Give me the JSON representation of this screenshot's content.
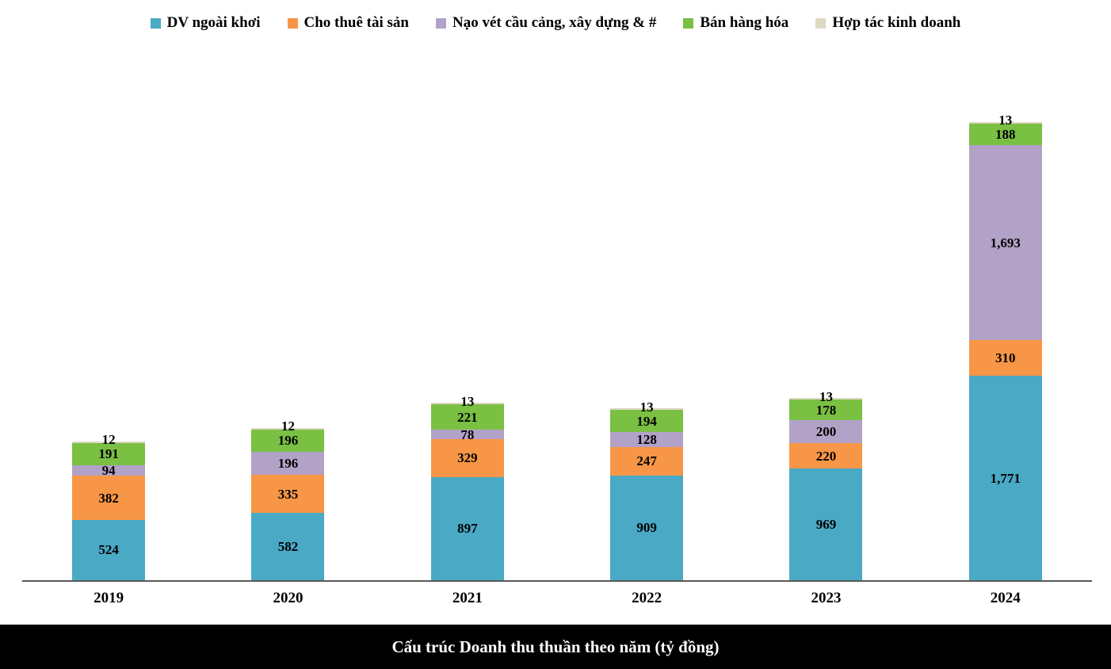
{
  "title": "Cấu trúc Doanh thu thuần theo năm (tỷ đồng)",
  "legend": {
    "position": "top",
    "items": [
      {
        "label": "DV ngoài khơi",
        "color": "#4AA9C5"
      },
      {
        "label": "Cho thuê tài sản",
        "color": "#F79646"
      },
      {
        "label": "Nạo vét cầu cảng, xây dựng & #",
        "color": "#B3A2C7"
      },
      {
        "label": "Bán hàng hóa",
        "color": "#79C043"
      },
      {
        "label": "Hợp tác kinh doanh",
        "color": "#DDD9C3"
      }
    ]
  },
  "chart_data": {
    "type": "bar",
    "stacked": true,
    "title": "Cấu trúc Doanh thu thuần theo năm (tỷ đồng)",
    "xlabel": "",
    "ylabel": "",
    "categories": [
      "2019",
      "2020",
      "2021",
      "2022",
      "2023",
      "2024"
    ],
    "series": [
      {
        "name": "DV ngoài khơi",
        "color": "#4AA9C5",
        "values": [
          524,
          582,
          897,
          909,
          969,
          1771
        ]
      },
      {
        "name": "Cho thuê tài sản",
        "color": "#F79646",
        "values": [
          382,
          335,
          329,
          247,
          220,
          310
        ]
      },
      {
        "name": "Nạo vét cầu cảng, xây dựng & #",
        "color": "#B3A2C7",
        "values": [
          94,
          196,
          78,
          128,
          200,
          1693
        ]
      },
      {
        "name": "Bán hàng hóa",
        "color": "#79C043",
        "values": [
          191,
          196,
          221,
          194,
          178,
          188
        ]
      },
      {
        "name": "Hợp tác kinh doanh",
        "color": "#DDD9C3",
        "values": [
          12,
          12,
          13,
          13,
          13,
          13
        ]
      }
    ],
    "totals": [
      1203,
      1321,
      1538,
      1491,
      1580,
      3975
    ],
    "ylim": [
      0,
      4000
    ],
    "grid": false,
    "legend_position": "top",
    "value_labels": true,
    "number_format": "thousands-comma"
  }
}
